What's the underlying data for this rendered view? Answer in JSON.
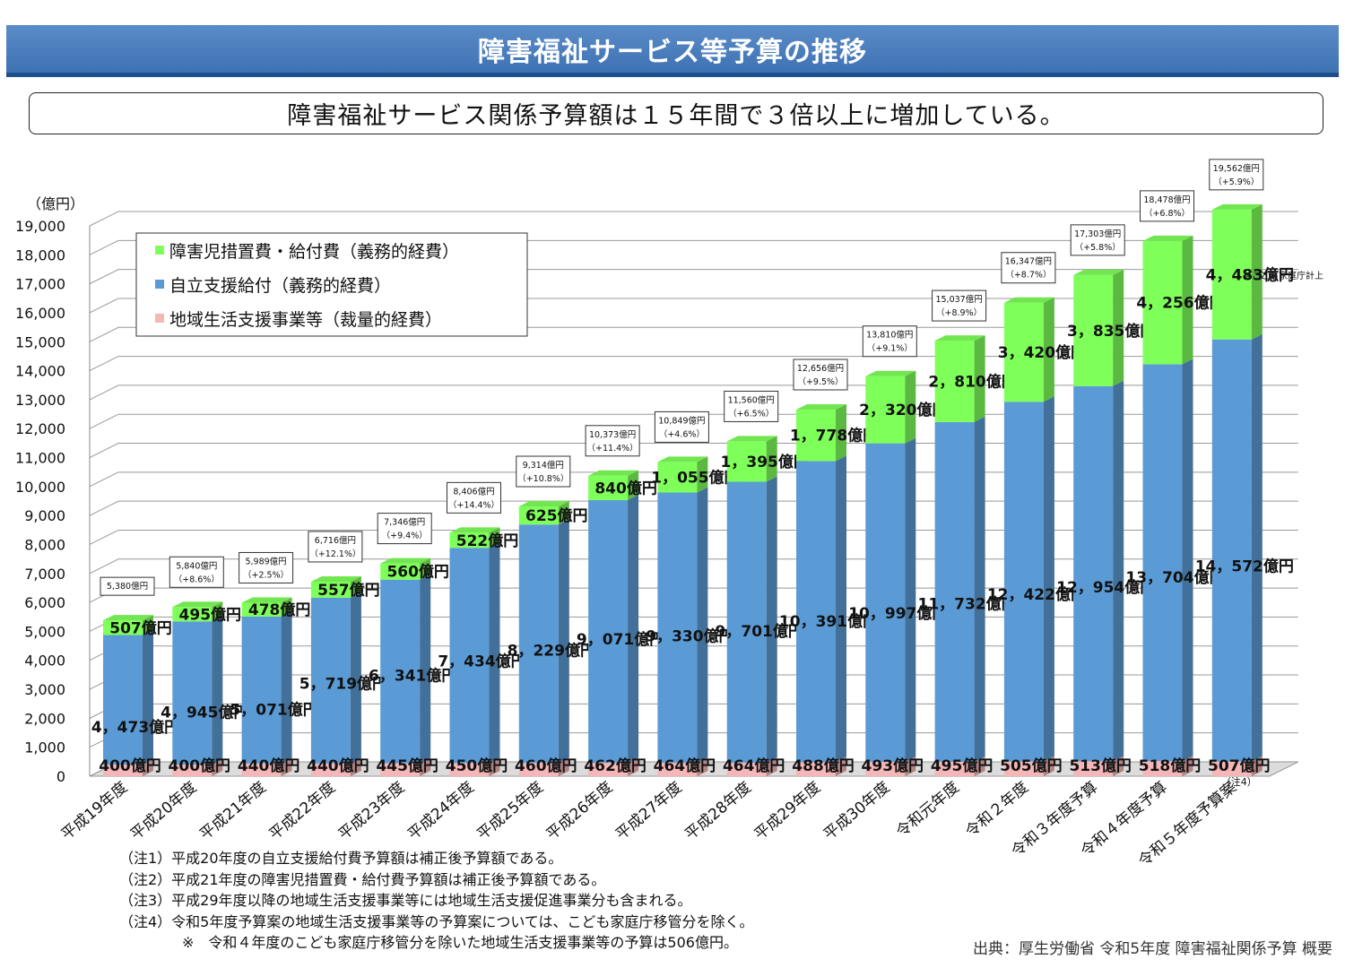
{
  "header": {
    "title": "障害福祉サービス等予算の推移",
    "subtitle": "障害福祉サービス関係予算額は１５年間で３倍以上に増加している。"
  },
  "chart_data": {
    "type": "bar",
    "stacked": true,
    "y_unit_label": "（億円）",
    "ylim": [
      0,
      19000
    ],
    "y_ticks": [
      "0",
      "1,000",
      "2,000",
      "3,000",
      "4,000",
      "5,000",
      "6,000",
      "7,000",
      "8,000",
      "9,000",
      "10,000",
      "11,000",
      "12,000",
      "13,000",
      "14,000",
      "15,000",
      "16,000",
      "17,000",
      "18,000",
      "19,000"
    ],
    "grid": true,
    "legend_position": "top-left",
    "categories": [
      "平成19年度",
      "平成20年度",
      "平成21年度",
      "平成22年度",
      "平成23年度",
      "平成24年度",
      "平成25年度",
      "平成26年度",
      "平成27年度",
      "平成28年度",
      "平成29年度",
      "平成30年度",
      "令和元年度",
      "令和２年度",
      "令和３年度予算",
      "令和４年度予算",
      "令和５年度予算案"
    ],
    "series": [
      {
        "name": "地域生活支援事業等（裁量的経費）",
        "color": "#f4b6b6",
        "values": [
          400,
          400,
          440,
          440,
          445,
          450,
          460,
          462,
          464,
          464,
          488,
          493,
          495,
          505,
          513,
          518,
          507
        ],
        "labels": [
          "400億円",
          "400億円",
          "440億円",
          "440億円",
          "445億円",
          "450億円",
          "460億円",
          "462億円",
          "464億円",
          "464億円",
          "488億円",
          "493億円",
          "495億円",
          "505億円",
          "513億円",
          "518億円",
          "507億円"
        ]
      },
      {
        "name": "自立支援給付（義務的経費）",
        "color": "#5b9bd5",
        "values": [
          4473,
          4945,
          5071,
          5719,
          6341,
          7434,
          8229,
          9071,
          9330,
          9701,
          10391,
          10997,
          11732,
          12422,
          12954,
          13704,
          14572
        ],
        "labels": [
          "4，473億円",
          "4，945億円",
          "5，071億円",
          "5，719億円",
          "6，341億円",
          "7，434億円",
          "8，229億円",
          "9，071億円",
          "9，330億円",
          "9，701億円",
          "10，391億円",
          "10，997億円",
          "11，732億円",
          "12，422億円",
          "12，954億円",
          "13，704億円",
          "14，572億円"
        ]
      },
      {
        "name": "障害児措置費・給付費（義務的経費）",
        "color": "#7fff5a",
        "values": [
          507,
          495,
          478,
          557,
          560,
          522,
          625,
          840,
          1055,
          1395,
          1778,
          2320,
          2810,
          3420,
          3835,
          4256,
          4483
        ],
        "labels": [
          "507億円",
          "495億円",
          "478億円",
          "557億円",
          "560億円",
          "522億円",
          "625億円",
          "840億円",
          "1，055億円",
          "1，395億円",
          "1，778億円",
          "2，320億円",
          "2，810億円",
          "3，420億円",
          "3，835億円",
          "4，256億円",
          "4，483億円"
        ]
      }
    ],
    "totals": [
      {
        "total": "5,380億円",
        "growth": ""
      },
      {
        "total": "5,840億円",
        "growth": "（+8.6%）"
      },
      {
        "total": "5,989億円",
        "growth": "（+2.5%）"
      },
      {
        "total": "6,716億円",
        "growth": "（+12.1%）"
      },
      {
        "total": "7,346億円",
        "growth": "（+9.4%）"
      },
      {
        "total": "8,406億円",
        "growth": "（+14.4%）"
      },
      {
        "total": "9,314億円",
        "growth": "（+10.8%）"
      },
      {
        "total": "10,373億円",
        "growth": "（+11.4%）"
      },
      {
        "total": "10,849億円",
        "growth": "（+4.6%）"
      },
      {
        "total": "11,560億円",
        "growth": "（+6.5%）"
      },
      {
        "total": "12,656億円",
        "growth": "（+9.5%）"
      },
      {
        "total": "13,810億円",
        "growth": "（+9.1%）"
      },
      {
        "total": "15,037億円",
        "growth": "（+8.9%）"
      },
      {
        "total": "16,347億円",
        "growth": "（+8.7%）"
      },
      {
        "total": "17,303億円",
        "growth": "（+5.8%）"
      },
      {
        "total": "18,478億円",
        "growth": "（+6.8%）"
      },
      {
        "total": "19,562億円",
        "growth": "（+5.9%）"
      }
    ],
    "annotations": {
      "last_green_note": "※こども家庭庁計上",
      "last_pink_note": "（注4）"
    }
  },
  "notes": [
    "（注1）平成20年度の自立支援給付費予算額は補正後予算額である。",
    "（注2）平成21年度の障害児措置費・給付費予算額は補正後予算額である。",
    "（注3）平成29年度以降の地域生活支援事業等には地域生活支援促進事業分も含まれる。",
    "（注4）令和5年度予算案の地域生活支援事業等の予算案については、こども家庭庁移管分を除く。"
  ],
  "note_sub": "※　令和４年度のこども家庭庁移管分を除いた地域生活支援事業等の予算は506億円。",
  "source": "出典：厚生労働省 令和5年度 障害福祉関係予算 概要"
}
